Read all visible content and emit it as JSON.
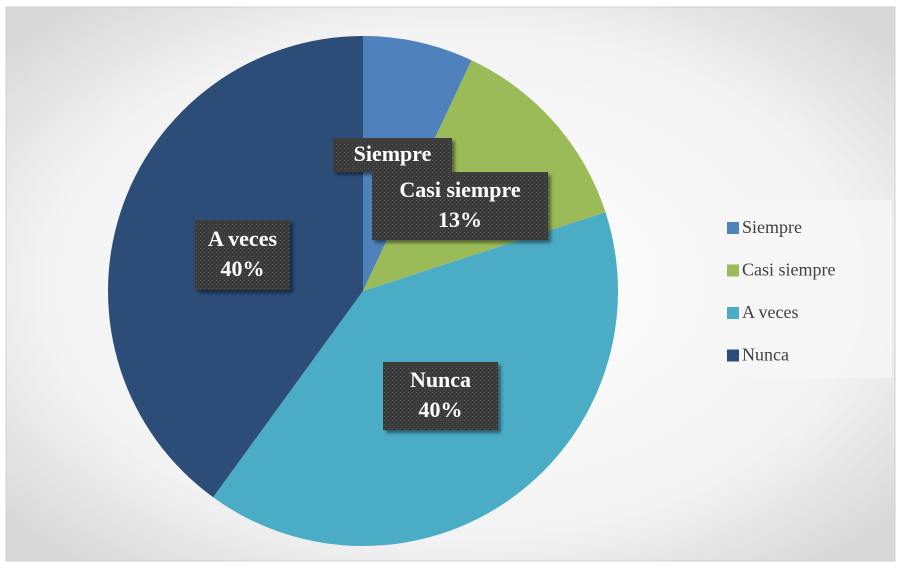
{
  "chart_data": {
    "type": "pie",
    "categories": [
      "Siempre",
      "Casi siempre",
      "A veces",
      "Nunca"
    ],
    "values": [
      7,
      13,
      40,
      40
    ],
    "value_labels": [
      null,
      "13%",
      "40%",
      "40%"
    ],
    "colors": [
      "#4f81bd",
      "#9bbb59",
      "#4bacc6",
      "#2c4d77"
    ],
    "legend": "right"
  }
}
